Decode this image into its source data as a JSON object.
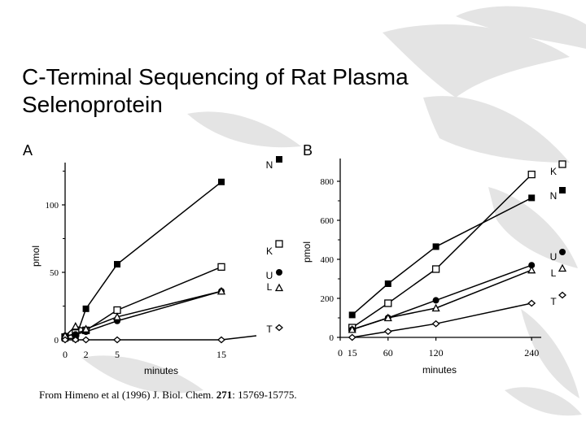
{
  "slide": {
    "title_line1": "C-Terminal Sequencing of Rat Plasma",
    "title_line2": "Selenoprotein",
    "caption_pre": "From Himeno et al (1996) J. Biol. Chem. ",
    "caption_vol": "271",
    "caption_post": ": 15769-15775."
  },
  "chart_data": [
    {
      "type": "line",
      "panel": "A",
      "xlabel": "minutes",
      "ylabel": "pmol",
      "x_ticks": [
        0,
        2,
        5,
        15
      ],
      "y_ticks": [
        0,
        50,
        100
      ],
      "xlim": [
        0,
        19
      ],
      "ylim": [
        0,
        130
      ],
      "series": [
        {
          "name": "N",
          "marker": "filled-square",
          "x": [
            0,
            1,
            2,
            5,
            15
          ],
          "y": [
            1,
            1,
            23,
            56,
            117
          ]
        },
        {
          "name": "K",
          "marker": "open-square",
          "x": [
            0,
            1,
            2,
            5,
            15
          ],
          "y": [
            2,
            5,
            7,
            22,
            54
          ]
        },
        {
          "name": "U",
          "marker": "filled-circle",
          "x": [
            0,
            1,
            2,
            5,
            15
          ],
          "y": [
            3,
            4,
            6,
            14,
            36
          ]
        },
        {
          "name": "L",
          "marker": "open-triangle",
          "x": [
            0,
            1,
            2,
            5,
            15
          ],
          "y": [
            3,
            10,
            8,
            17,
            36
          ]
        },
        {
          "name": "T",
          "marker": "open-diamond",
          "x": [
            0,
            1,
            2,
            5,
            15
          ],
          "y": [
            0,
            0,
            0,
            0,
            0
          ]
        }
      ]
    },
    {
      "type": "line",
      "panel": "B",
      "xlabel": "minutes",
      "ylabel": "pmol",
      "x_ticks": [
        0,
        15,
        60,
        120,
        240
      ],
      "y_ticks": [
        0,
        200,
        400,
        600,
        800
      ],
      "xlim": [
        0,
        245
      ],
      "ylim": [
        0,
        870
      ],
      "series": [
        {
          "name": "K",
          "marker": "open-square",
          "x": [
            15,
            60,
            120,
            240
          ],
          "y": [
            50,
            175,
            350,
            835
          ]
        },
        {
          "name": "N",
          "marker": "filled-square",
          "x": [
            15,
            60,
            120,
            240
          ],
          "y": [
            115,
            275,
            465,
            715
          ]
        },
        {
          "name": "U",
          "marker": "filled-circle",
          "x": [
            15,
            60,
            120,
            240
          ],
          "y": [
            40,
            100,
            190,
            370
          ]
        },
        {
          "name": "L",
          "marker": "open-triangle",
          "x": [
            15,
            60,
            120,
            240
          ],
          "y": [
            40,
            100,
            150,
            345
          ]
        },
        {
          "name": "T",
          "marker": "open-diamond",
          "x": [
            15,
            60,
            120,
            240
          ],
          "y": [
            0,
            30,
            70,
            175
          ]
        }
      ]
    }
  ]
}
